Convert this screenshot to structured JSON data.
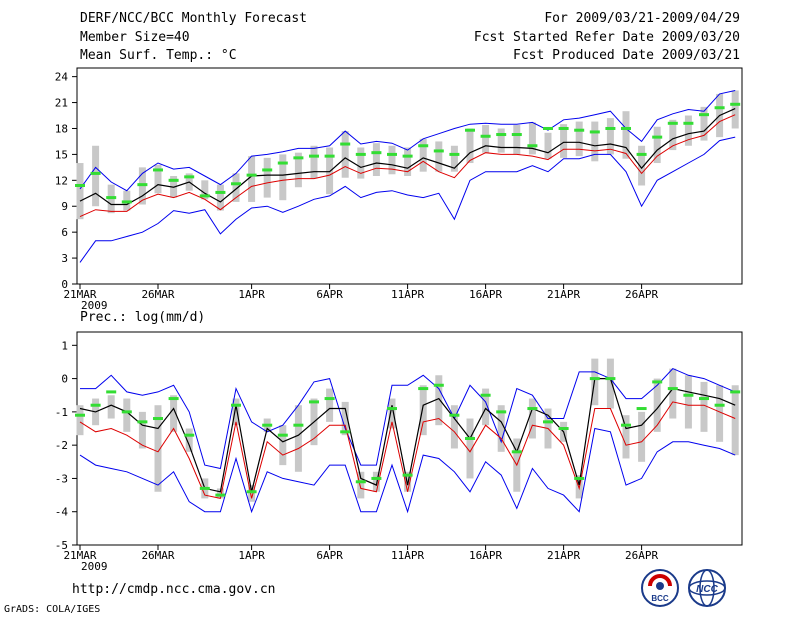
{
  "header": {
    "title": "DERF/NCC/BCC Monthly Forecast",
    "member": "Member Size=40",
    "variable": "Mean Surf. Temp.: °C",
    "period": "For 2009/03/21-2009/04/29",
    "started": "Fcst Started Refer Date 2009/03/20",
    "produced": "Fcst Produced Date 2009/03/21"
  },
  "footer": {
    "url": "http://cmdp.ncc.cma.gov.cn",
    "credit": "GrADS: COLA/IGES"
  },
  "logos": {
    "bcc": "BCC",
    "ncc": "NCC"
  },
  "colors": {
    "upper": "#0000ee",
    "lower": "#0000ee",
    "mean": "#000000",
    "median": "#dd0000",
    "bar": "#c8c8c8",
    "obs": "#33dd33"
  },
  "chart_data": [
    {
      "type": "line",
      "title": "Mean Surf. Temp.: °C",
      "xlabel": "",
      "ylabel": "°C",
      "ylim": [
        0,
        25
      ],
      "yticks": [
        "0",
        "3",
        "6",
        "9",
        "12",
        "15",
        "18",
        "21",
        "24"
      ],
      "xtick_days": [
        0,
        5,
        11,
        16,
        21,
        26,
        31,
        36
      ],
      "xtick_labels": [
        "21MAR",
        "26MAR",
        "1APR",
        "6APR",
        "11APR",
        "16APR",
        "21APR",
        "26APR"
      ],
      "year_label": "2009",
      "series": [
        {
          "name": "max",
          "values": [
            2.5,
            5,
            5,
            5.5,
            6,
            7,
            8.5,
            8.2,
            8.6,
            5.8,
            7.5,
            8.8,
            9,
            8.3,
            9,
            9.8,
            10.2,
            11.3,
            10,
            10.6,
            10.8,
            10.3,
            10,
            10.5,
            7.5,
            12,
            13,
            13,
            13,
            13.7,
            13,
            14.5,
            14.5,
            15,
            15,
            13,
            9,
            12,
            13,
            14,
            15,
            16.6,
            17
          ]
        },
        {
          "name": "mean",
          "values": [
            9.6,
            10.5,
            9.2,
            9.2,
            10.2,
            11.5,
            11.2,
            11.8,
            10.5,
            9.5,
            11,
            12.5,
            12.6,
            12.6,
            12.8,
            13,
            13,
            14.6,
            13.5,
            14,
            13.8,
            13.4,
            14.6,
            14,
            13.4,
            15.2,
            16,
            15.8,
            15.8,
            15.7,
            15.2,
            16.4,
            16.4,
            16,
            16.2,
            15.8,
            13.4,
            15.5,
            16.8,
            17.4,
            17.7,
            19.5,
            20.3
          ]
        },
        {
          "name": "median",
          "values": [
            7.8,
            8.6,
            8.4,
            8.4,
            9.7,
            10.4,
            10,
            10.6,
            9.8,
            8.6,
            10,
            11.3,
            11.7,
            12,
            12.2,
            12.2,
            12.6,
            13.6,
            12.8,
            13.4,
            13.3,
            13,
            14.2,
            13,
            12.3,
            14.3,
            15.2,
            15,
            15,
            14.8,
            14.4,
            15.6,
            15.6,
            15.4,
            15.6,
            15.1,
            12.8,
            14.8,
            16,
            16.7,
            17.2,
            18.8,
            19.6
          ]
        },
        {
          "name": "min",
          "values": [
            11,
            13.5,
            11.8,
            10.8,
            12.8,
            14,
            13.3,
            13.5,
            12.5,
            11.5,
            12.8,
            14.8,
            15,
            15.3,
            15.7,
            15.7,
            16,
            17.7,
            16.2,
            16.5,
            16.3,
            15.5,
            16.8,
            17.4,
            18,
            18.5,
            18.6,
            18.5,
            18.5,
            18.7,
            17.8,
            19,
            19.2,
            19.6,
            20,
            18,
            16.5,
            19,
            19.7,
            20.2,
            20,
            22,
            22.4
          ]
        },
        {
          "name": "obs",
          "values": [
            11.4,
            12.8,
            10,
            9.5,
            11.5,
            13.2,
            12,
            12.4,
            10.2,
            10.6,
            11.6,
            12.6,
            13.2,
            14,
            14.6,
            14.8,
            14.8,
            16.2,
            15,
            15.2,
            15,
            14.8,
            16,
            15.4,
            15,
            17.8,
            17.1,
            17.3,
            17.3,
            16,
            18,
            18,
            17.8,
            17.6,
            18,
            18,
            15,
            17,
            18.6,
            18.6,
            19.6,
            20.4,
            20.8
          ]
        },
        {
          "name": "bar_low",
          "values": [
            7.5,
            9,
            8.2,
            8.5,
            9.2,
            10.5,
            10,
            10.8,
            9.8,
            8.5,
            9.5,
            9.5,
            10,
            9.7,
            11.2,
            12.2,
            10.4,
            12.3,
            12.2,
            12.5,
            12.7,
            12.5,
            13,
            13,
            13,
            14,
            15.2,
            15.2,
            15,
            15,
            14.5,
            14.6,
            14.8,
            14.2,
            15,
            14.5,
            11.4,
            14,
            15.5,
            16,
            16.6,
            17,
            18
          ]
        },
        {
          "name": "bar_high",
          "values": [
            14,
            16,
            11.5,
            10.8,
            13.5,
            13.8,
            12.5,
            12.8,
            12,
            11.5,
            12.8,
            14.8,
            14.6,
            15,
            15.2,
            16,
            15.8,
            17.7,
            15.8,
            16.3,
            16,
            15.8,
            16.8,
            16.5,
            16,
            18,
            18.4,
            18,
            18.4,
            18.7,
            17.5,
            18.5,
            18.8,
            18.8,
            19.2,
            20,
            16,
            18.2,
            19,
            19.5,
            20.5,
            22,
            22.4
          ]
        }
      ]
    },
    {
      "type": "line",
      "title": "Prec.: log(mm/d)",
      "xlabel": "",
      "ylabel": "log(mm/d)",
      "ylim": [
        -5,
        1.4
      ],
      "yticks": [
        "-5",
        "-4",
        "-3",
        "-2",
        "-1",
        "0",
        "1"
      ],
      "xtick_days": [
        0,
        5,
        11,
        16,
        21,
        26,
        31,
        36
      ],
      "xtick_labels": [
        "21MAR",
        "26MAR",
        "1APR",
        "6APR",
        "11APR",
        "16APR",
        "21APR",
        "26APR"
      ],
      "year_label": "2009",
      "series": [
        {
          "name": "max",
          "values": [
            -0.3,
            -0.3,
            0.1,
            -0.4,
            -0.5,
            -0.4,
            -0.2,
            -1,
            -2.6,
            -2.7,
            -0.3,
            -1.3,
            -1.6,
            -1.4,
            -0.8,
            -0.1,
            0,
            -1.5,
            -2.6,
            -2.6,
            -0.2,
            -0.2,
            0.1,
            -0.3,
            -1.2,
            -0.2,
            -0.7,
            -1.9,
            -0.3,
            -0.5,
            -1.2,
            -1.2,
            0.2,
            0.2,
            0,
            -0.6,
            -0.6,
            -0.2,
            0.3,
            0.1,
            0,
            -0.2,
            -0.4
          ]
        },
        {
          "name": "mean",
          "values": [
            -0.9,
            -1,
            -0.8,
            -1,
            -1.4,
            -1.5,
            -0.9,
            -2,
            -3.3,
            -3.4,
            -0.8,
            -3.4,
            -1.5,
            -1.9,
            -1.7,
            -1.3,
            -0.9,
            -0.9,
            -3,
            -3.2,
            -0.8,
            -3.2,
            -0.8,
            -0.6,
            -1.2,
            -1.8,
            -0.9,
            -1.3,
            -2.2,
            -0.9,
            -1.1,
            -1.6,
            -3.2,
            0,
            0,
            -1.5,
            -1.4,
            -0.9,
            -0.3,
            -0.4,
            -0.5,
            -0.6,
            -0.8
          ]
        },
        {
          "name": "median",
          "values": [
            -1.3,
            -1.6,
            -1.5,
            -1.7,
            -2,
            -2.2,
            -1.5,
            -2.4,
            -3.5,
            -3.6,
            -1.3,
            -3.6,
            -1.9,
            -2.3,
            -2.1,
            -1.8,
            -1.4,
            -1.4,
            -3.3,
            -3.4,
            -1.3,
            -3.4,
            -1.3,
            -1.2,
            -1.6,
            -2.2,
            -1.4,
            -1.8,
            -2.6,
            -1.4,
            -1.5,
            -2,
            -3.3,
            -0.9,
            -0.9,
            -2,
            -1.9,
            -1.4,
            -0.7,
            -0.8,
            -0.8,
            -1,
            -1.2
          ]
        },
        {
          "name": "min",
          "values": [
            -2.3,
            -2.6,
            -2.7,
            -2.8,
            -3,
            -3.2,
            -2.8,
            -3.7,
            -4,
            -4,
            -2.4,
            -4,
            -2.8,
            -3,
            -3.1,
            -3.2,
            -2.6,
            -2.6,
            -4,
            -4,
            -2.6,
            -4,
            -2.3,
            -2.4,
            -2.8,
            -3.4,
            -2.5,
            -2.9,
            -3.9,
            -2.7,
            -3.3,
            -3.5,
            -4,
            -1.5,
            -1.6,
            -3.2,
            -3,
            -2.2,
            -1.9,
            -1.9,
            -2,
            -2.1,
            -2.3
          ]
        },
        {
          "name": "obs",
          "values": [
            -1.1,
            -0.8,
            -0.4,
            -1,
            -1.3,
            -1.2,
            -0.6,
            -1.7,
            -3.3,
            -3.5,
            -0.8,
            -3.4,
            -1.4,
            -1.7,
            -1.4,
            -0.7,
            -0.6,
            -1.6,
            -3.1,
            -3,
            -0.9,
            -2.9,
            -0.3,
            -0.2,
            -1.1,
            -1.8,
            -0.5,
            -1,
            -2.2,
            -0.9,
            -1.3,
            -1.5,
            -3,
            0,
            0,
            -1.4,
            -0.9,
            -0.1,
            -0.3,
            -0.5,
            -0.6,
            -0.8,
            -0.4
          ]
        },
        {
          "name": "bar_low",
          "values": [
            -1.7,
            -1.4,
            -1.2,
            -1.6,
            -2.1,
            -3.4,
            -1.6,
            -2.2,
            -3.6,
            -3.6,
            -1.4,
            -3.7,
            -1.6,
            -2.6,
            -2.8,
            -2,
            -1.3,
            -1.7,
            -3.6,
            -3.4,
            -1.5,
            -3.4,
            -1.7,
            -1.4,
            -2.1,
            -3,
            -1.4,
            -2.2,
            -3.4,
            -1.8,
            -2.1,
            -1.9,
            -3.6,
            -0.8,
            -0.9,
            -2.4,
            -2.5,
            -1.6,
            -1.2,
            -1.5,
            -1.6,
            -1.9,
            -2.3
          ]
        },
        {
          "name": "bar_high",
          "values": [
            -0.8,
            -0.6,
            -0.5,
            -0.6,
            -1,
            -0.8,
            -0.5,
            -1.5,
            -3,
            -3.3,
            -0.6,
            -3.2,
            -1.2,
            -1.4,
            -0.8,
            -0.6,
            -0.3,
            -0.7,
            -2.8,
            -2.8,
            -0.6,
            -2.8,
            -0.2,
            0.1,
            -0.8,
            -1.2,
            -0.3,
            -0.8,
            -1.8,
            -0.6,
            -0.9,
            -1.3,
            -2.9,
            0.6,
            0.6,
            -1.1,
            -1,
            0,
            0.3,
            0.1,
            -0.1,
            -0.2,
            -0.2
          ]
        }
      ]
    }
  ]
}
